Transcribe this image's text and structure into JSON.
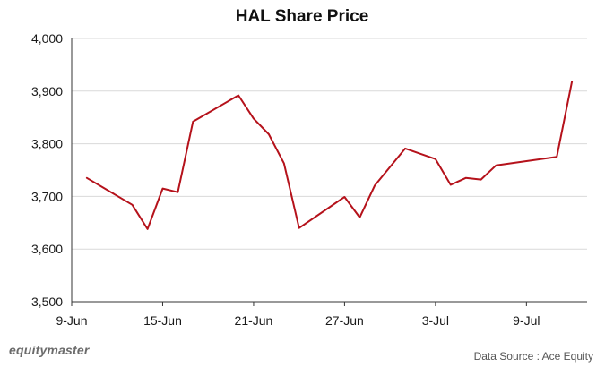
{
  "chart_data": {
    "type": "line",
    "title": "HAL Share Price",
    "xlabel": "",
    "ylabel": "",
    "ylim": [
      3500,
      4000
    ],
    "y_ticks": [
      3500,
      3600,
      3700,
      3800,
      3900,
      4000
    ],
    "y_tick_labels": [
      "3,500",
      "3,600",
      "3,700",
      "3,800",
      "3,900",
      "4,000"
    ],
    "x_ticks": [
      "2023-06-09",
      "2023-06-15",
      "2023-06-21",
      "2023-06-27",
      "2023-07-03",
      "2023-07-09"
    ],
    "x_tick_labels": [
      "9-Jun",
      "15-Jun",
      "21-Jun",
      "27-Jun",
      "3-Jul",
      "9-Jul"
    ],
    "xlim": [
      "2023-06-09",
      "2023-07-13"
    ],
    "grid": "horizontal",
    "line_color": "#b5121b",
    "series": [
      {
        "x": [
          "2023-06-10",
          "2023-06-13",
          "2023-06-14",
          "2023-06-15",
          "2023-06-16",
          "2023-06-17",
          "2023-06-20",
          "2023-06-21",
          "2023-06-22",
          "2023-06-23",
          "2023-06-24",
          "2023-06-27",
          "2023-06-28",
          "2023-06-29",
          "2023-07-01",
          "2023-07-03",
          "2023-07-04",
          "2023-07-05",
          "2023-07-06",
          "2023-07-07",
          "2023-07-11",
          "2023-07-12"
        ],
        "values": [
          3735,
          3684,
          3638,
          3715,
          3708,
          3842,
          3892,
          3848,
          3818,
          3763,
          3640,
          3699,
          3660,
          3721,
          3791,
          3771,
          3722,
          3735,
          3732,
          3759,
          3775,
          3918
        ]
      }
    ]
  },
  "footer": {
    "logo_text": "equitymaster",
    "source_text": "Data Source : Ace Equity"
  }
}
